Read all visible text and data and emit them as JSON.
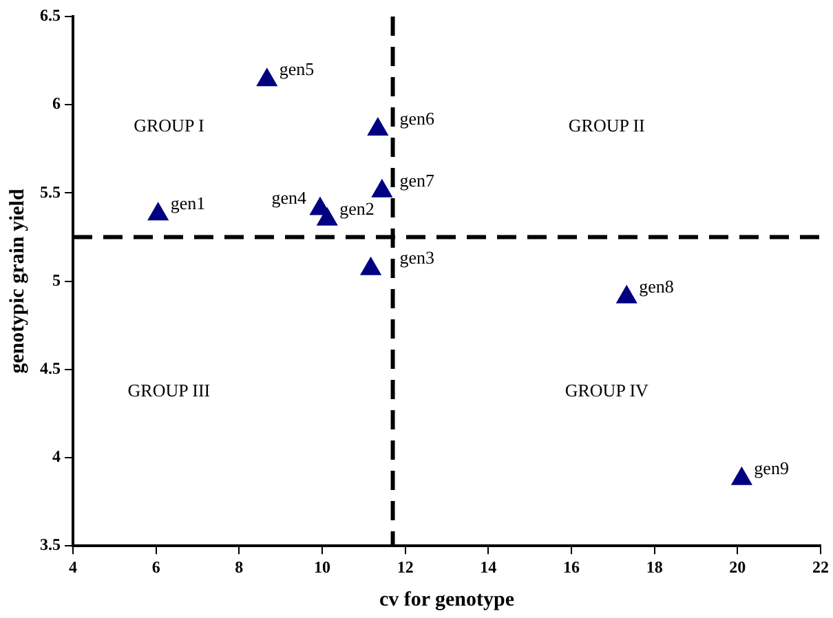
{
  "chart_data": {
    "type": "scatter",
    "xlabel": "cv for genotype",
    "ylabel": "genotypic grain yield",
    "xlim": [
      4,
      22
    ],
    "xticks": [
      4,
      6,
      8,
      10,
      12,
      14,
      16,
      18,
      20,
      22
    ],
    "ylim": [
      3.5,
      6.5
    ],
    "yticks": [
      3.5,
      4,
      4.5,
      5,
      5.5,
      6,
      6.5
    ],
    "grid": false,
    "legend": false,
    "marker": "triangle",
    "series": [
      {
        "name": "gen1",
        "color": "#000080",
        "x": [
          6.05
        ],
        "values": [
          5.38
        ]
      },
      {
        "name": "gen2",
        "color": "#000080",
        "x": [
          10.12
        ],
        "values": [
          5.35
        ]
      },
      {
        "name": "gen3",
        "color": "#000080",
        "x": [
          11.17
        ],
        "values": [
          5.07
        ]
      },
      {
        "name": "gen4",
        "color": "#000080",
        "x": [
          9.95
        ],
        "values": [
          5.41
        ]
      },
      {
        "name": "gen5",
        "color": "#000080",
        "x": [
          8.67
        ],
        "values": [
          6.14
        ]
      },
      {
        "name": "gen6",
        "color": "#000080",
        "x": [
          11.34
        ],
        "values": [
          5.86
        ]
      },
      {
        "name": "gen7",
        "color": "#000080",
        "x": [
          11.44
        ],
        "values": [
          5.51
        ]
      },
      {
        "name": "gen8",
        "color": "#000080",
        "x": [
          17.33
        ],
        "values": [
          4.91
        ]
      },
      {
        "name": "gen9",
        "color": "#000080",
        "x": [
          20.1
        ],
        "values": [
          3.88
        ]
      }
    ],
    "ref_lines": [
      {
        "axis": "y",
        "value": 5.25,
        "color": "#000000",
        "line_style": "dashed"
      },
      {
        "axis": "x",
        "value": 11.7,
        "color": "#000000",
        "line_style": "dashed"
      }
    ],
    "annotations": [
      "GROUP I",
      "GROUP II",
      "GROUP III",
      "GROUP IV"
    ]
  }
}
